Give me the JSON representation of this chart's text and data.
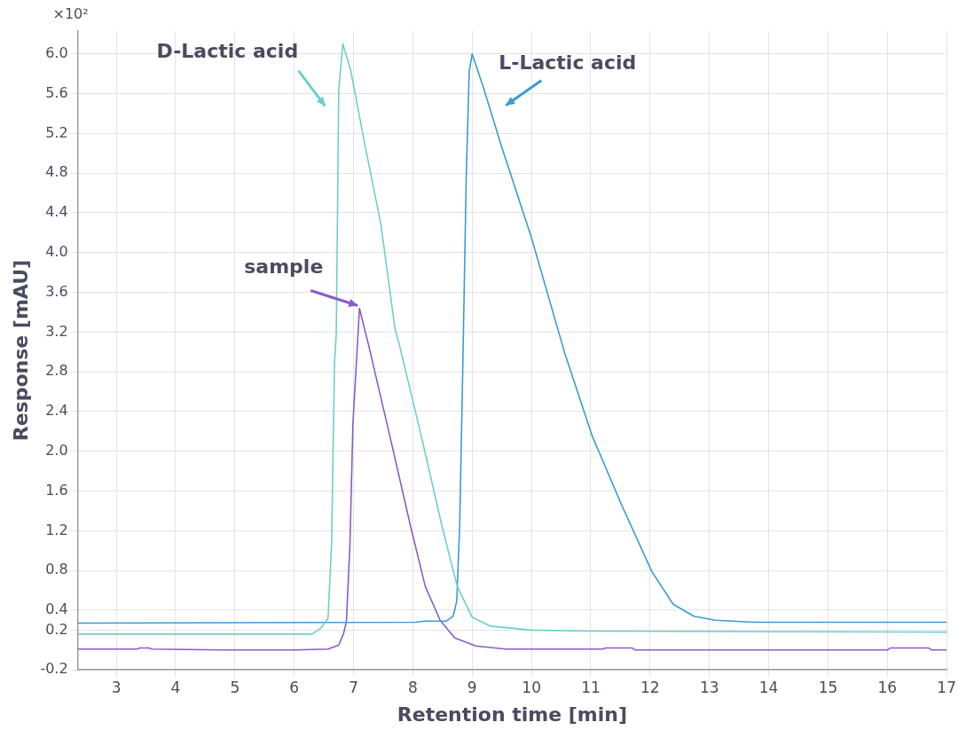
{
  "chart_data": {
    "type": "line",
    "xlabel": "Retention time [min]",
    "ylabel": "Response [mAU]",
    "annotations": [
      "×10²"
    ],
    "xlim": [
      2.35,
      17
    ],
    "xticks": [
      3,
      4,
      5,
      6,
      7,
      8,
      9,
      10,
      11,
      12,
      13,
      14,
      15,
      16,
      17
    ],
    "ylim": [
      -0.2,
      6.23
    ],
    "yticks": [
      -0.2,
      0.2,
      0.4,
      0.8,
      1.2,
      1.6,
      {
        "value": 2,
        "label": "2.0"
      },
      2.4,
      2.8,
      3.2,
      3.6,
      {
        "value": 4,
        "label": "4.0"
      },
      4.4,
      4.8,
      5.2,
      5.6,
      {
        "value": 6,
        "label": "6.0"
      }
    ],
    "grid": true,
    "marker": "none",
    "line_style": "solid",
    "series": [
      {
        "name": "D-Lactic acid",
        "color": "#6dcfcb",
        "x": [
          2.35,
          6.3,
          6.45,
          6.57,
          6.63,
          6.68,
          6.71,
          6.75,
          6.82,
          6.95,
          7.2,
          7.46,
          7.7,
          7.77,
          8.14,
          8.49,
          8.75,
          9.0,
          9.31,
          10.0,
          11.0,
          17
        ],
        "values": [
          0.16,
          0.16,
          0.22,
          0.32,
          1.07,
          2.89,
          3.2,
          5.63,
          6.1,
          5.84,
          5.06,
          4.29,
          3.23,
          3.08,
          2.16,
          1.25,
          0.64,
          0.33,
          0.24,
          0.2,
          0.19,
          0.18
        ]
      },
      {
        "name": "L-Lactic acid",
        "color": "#3a9bd5",
        "x": [
          2.35,
          8.05,
          8.2,
          8.56,
          8.68,
          8.74,
          8.79,
          8.84,
          8.9,
          8.95,
          9.0,
          9.19,
          9.5,
          10.0,
          10.56,
          11.02,
          11.52,
          12.03,
          12.39,
          12.74,
          13.1,
          13.76,
          14.3,
          17
        ],
        "values": [
          0.27,
          0.28,
          0.29,
          0.29,
          0.34,
          0.49,
          1.25,
          2.78,
          4.75,
          5.82,
          6.0,
          5.66,
          5.06,
          4.15,
          2.99,
          2.16,
          1.46,
          0.79,
          0.46,
          0.34,
          0.3,
          0.28,
          0.28,
          0.28
        ]
      },
      {
        "name": "sample",
        "color": "#8a5cc7",
        "x": [
          2.35,
          3.35,
          3.4,
          3.55,
          3.6,
          4.8,
          6.0,
          6.57,
          6.75,
          6.83,
          6.88,
          6.94,
          6.99,
          7.1,
          7.25,
          7.61,
          7.96,
          8.21,
          8.46,
          8.71,
          9.06,
          9.57,
          11.2,
          11.25,
          11.7,
          11.75,
          16.0,
          16.05,
          16.7,
          16.75,
          17
        ],
        "values": [
          0.01,
          0.01,
          0.02,
          0.02,
          0.01,
          0.0,
          0.0,
          0.01,
          0.05,
          0.16,
          0.29,
          1.07,
          2.28,
          3.44,
          3.08,
          2.16,
          1.25,
          0.64,
          0.3,
          0.12,
          0.04,
          0.01,
          0.01,
          0.02,
          0.02,
          0.0,
          0.0,
          0.02,
          0.02,
          0.0,
          0.0
        ]
      }
    ]
  }
}
